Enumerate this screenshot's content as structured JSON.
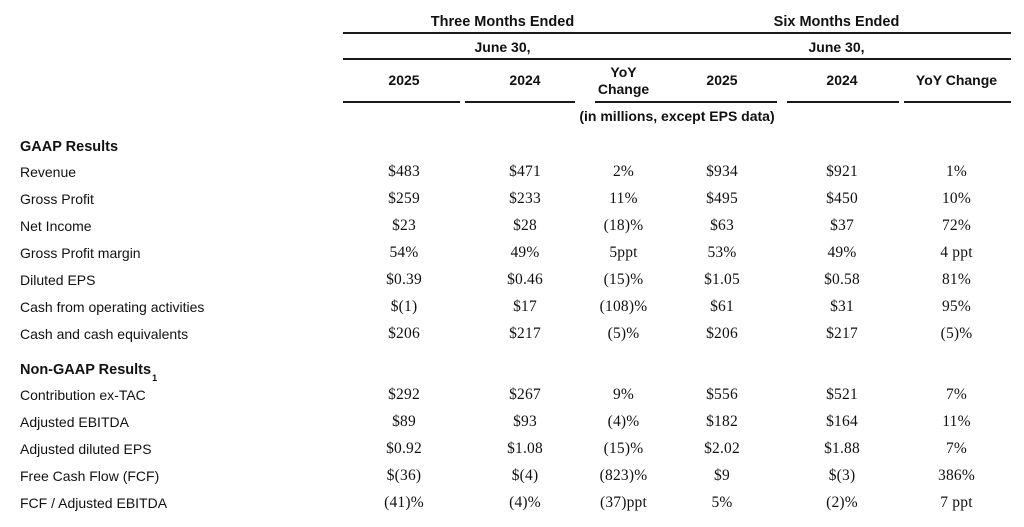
{
  "table": {
    "groups": [
      {
        "title": "Three Months Ended",
        "subtitle": "June 30,"
      },
      {
        "title": "Six Months Ended",
        "subtitle": "June 30,"
      }
    ],
    "columns": [
      "2025",
      "2024",
      "YoY Change",
      "2025",
      "2024",
      "YoY Change"
    ],
    "units_note": "(in millions, except EPS data)",
    "rows": [
      {
        "type": "section",
        "label": "GAAP Results",
        "sup": ""
      },
      {
        "type": "data",
        "label": "Revenue",
        "values": [
          "$483",
          "$471",
          "2%",
          "$934",
          "$921",
          "1%"
        ]
      },
      {
        "type": "data",
        "label": "Gross Profit",
        "values": [
          "$259",
          "$233",
          "11%",
          "$495",
          "$450",
          "10%"
        ]
      },
      {
        "type": "data",
        "label": "Net Income",
        "values": [
          "$23",
          "$28",
          "(18)%",
          "$63",
          "$37",
          "72%"
        ]
      },
      {
        "type": "data",
        "label": "Gross Profit margin",
        "values": [
          "54%",
          "49%",
          "5ppt",
          "53%",
          "49%",
          "4 ppt"
        ]
      },
      {
        "type": "data",
        "label": "Diluted EPS",
        "values": [
          "$0.39",
          "$0.46",
          "(15)%",
          "$1.05",
          "$0.58",
          "81%"
        ]
      },
      {
        "type": "data",
        "label": "Cash from operating activities",
        "values": [
          "$(1)",
          "$17",
          "(108)%",
          "$61",
          "$31",
          "95%"
        ]
      },
      {
        "type": "data",
        "label": "Cash and cash equivalents",
        "values": [
          "$206",
          "$217",
          "(5)%",
          "$206",
          "$217",
          "(5)%"
        ]
      },
      {
        "type": "section",
        "label": "Non-GAAP Results",
        "sup": "1"
      },
      {
        "type": "data",
        "label": "Contribution ex-TAC",
        "values": [
          "$292",
          "$267",
          "9%",
          "$556",
          "$521",
          "7%"
        ]
      },
      {
        "type": "data",
        "label": "Adjusted EBITDA",
        "values": [
          "$89",
          "$93",
          "(4)%",
          "$182",
          "$164",
          "11%"
        ]
      },
      {
        "type": "data",
        "label": "Adjusted diluted EPS",
        "values": [
          "$0.92",
          "$1.08",
          "(15)%",
          "$2.02",
          "$1.88",
          "7%"
        ]
      },
      {
        "type": "data",
        "label": "Free Cash Flow (FCF)",
        "values": [
          "$(36)",
          "$(4)",
          "(823)%",
          "$9",
          "$(3)",
          "386%"
        ]
      },
      {
        "type": "data",
        "label": "FCF / Adjusted EBITDA",
        "values": [
          "(41)%",
          "(4)%",
          "(37)ppt",
          "5%",
          "(2)%",
          "7 ppt"
        ]
      }
    ],
    "colors": {
      "text": "#111111",
      "rule": "#1a1a1a",
      "background": "#ffffff"
    }
  }
}
